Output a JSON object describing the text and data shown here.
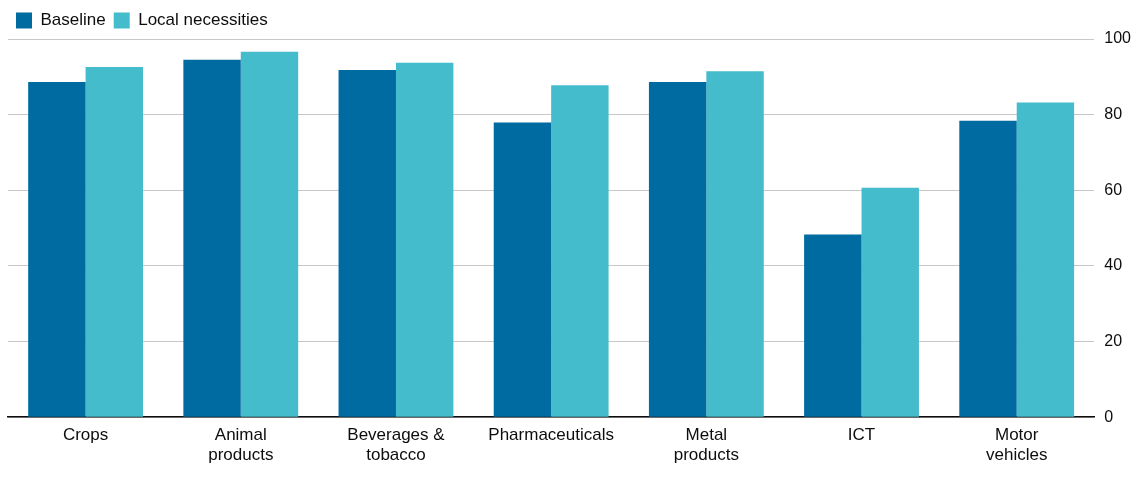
{
  "chart_data": {
    "type": "bar",
    "categories": [
      "Crops",
      "Animal products",
      "Beverages & tobacco",
      "Pharmaceuticals",
      "Metal products",
      "ICT",
      "Motor vehicles"
    ],
    "series": [
      {
        "name": "Baseline",
        "color": "#006ba1",
        "values": [
          88.6,
          94.5,
          91.8,
          77.9,
          88.6,
          48.3,
          78.4
        ]
      },
      {
        "name": "Local necessities",
        "color": "#44bccc",
        "values": [
          92.6,
          96.6,
          93.7,
          87.8,
          91.5,
          60.7,
          83.2
        ]
      }
    ],
    "ylim": [
      0,
      100
    ],
    "yticks": [
      0,
      20,
      40,
      60,
      80,
      100
    ],
    "grid": "y",
    "legend": "top left"
  }
}
